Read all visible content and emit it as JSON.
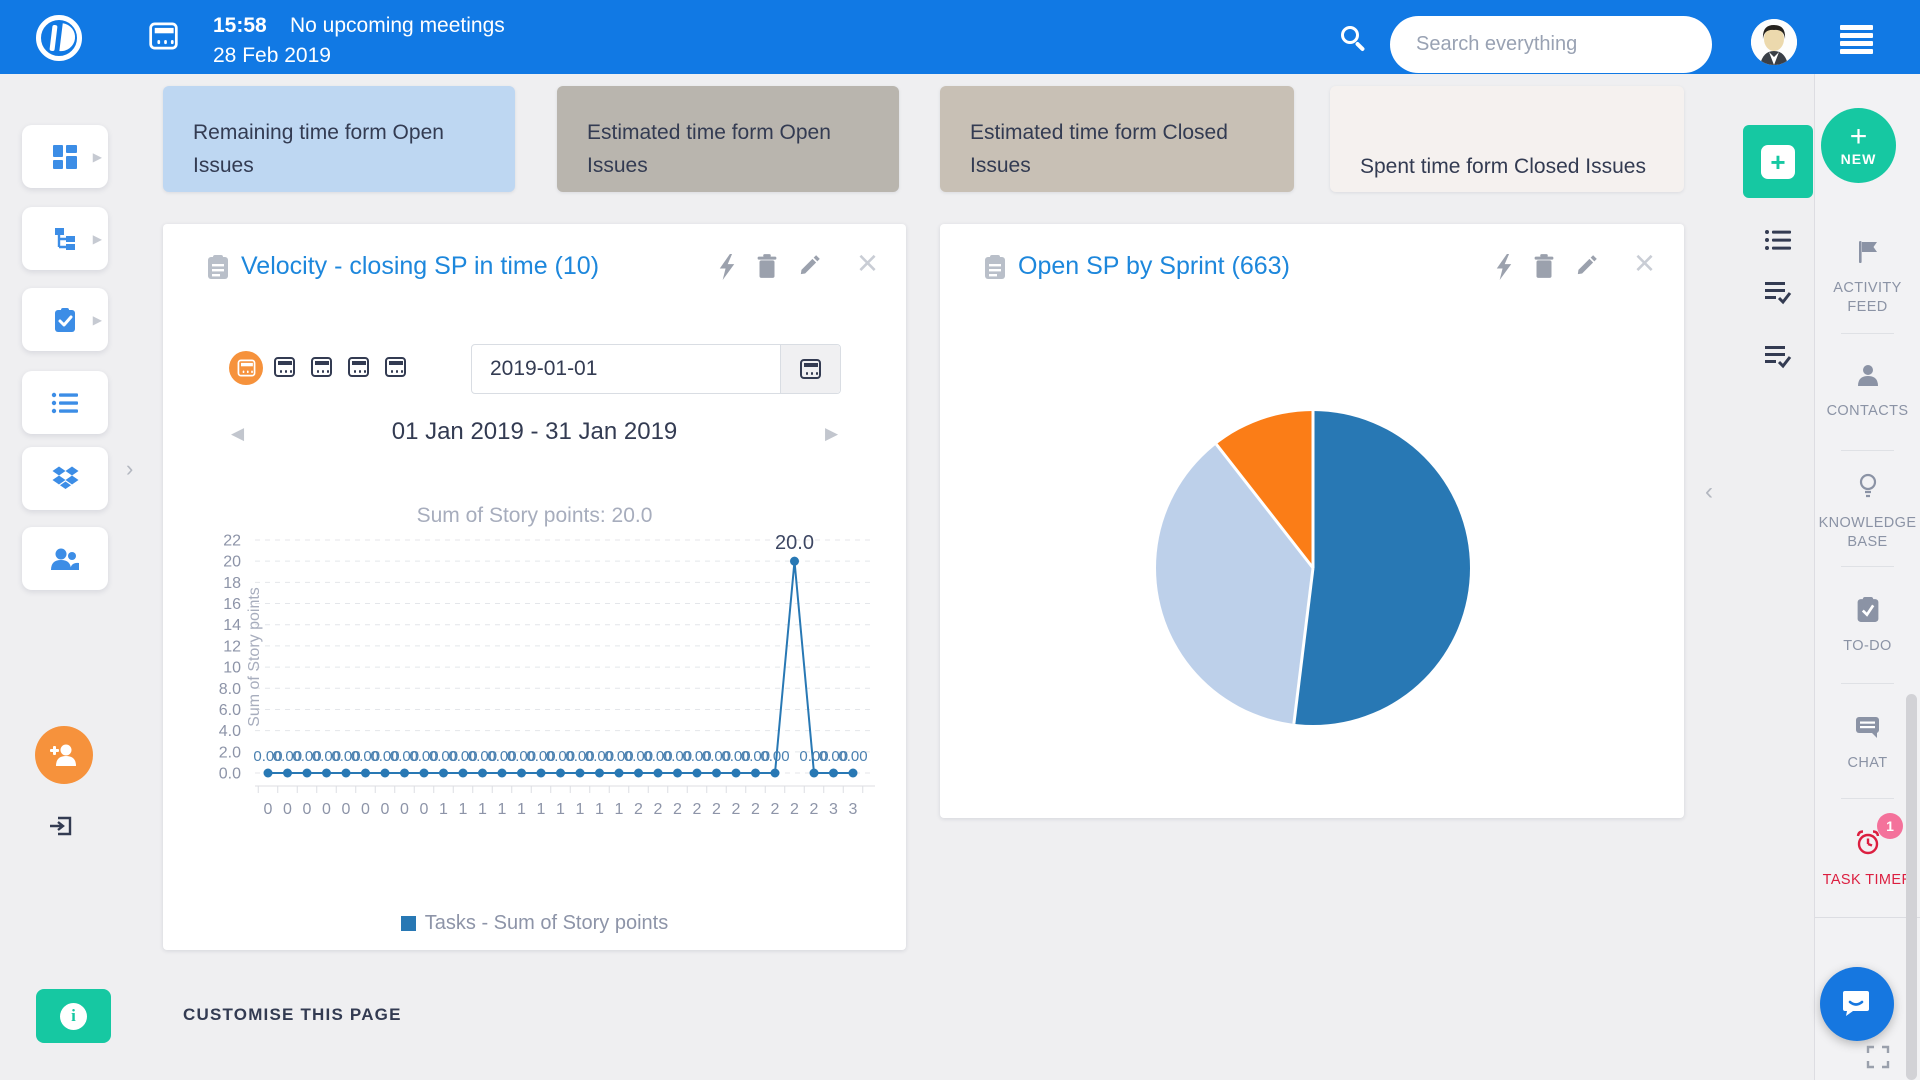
{
  "theme": {
    "topbar_blue": "#1179e4",
    "accent_blue": "#1d87dc",
    "navy": "#333b52",
    "teal": "#16c8a2",
    "orange": "#f6923c",
    "chart_blue": "#2878b4",
    "timer_red": "#dc1f40",
    "badge_pink": "#f4729b"
  },
  "topbar": {
    "time": "15:58",
    "meeting_status": "No upcoming meetings",
    "date": "28 Feb 2019",
    "search_placeholder": "Search everything"
  },
  "summary_cards": [
    {
      "label": "Remaining time form Open Issues",
      "bg": "#bed7f2"
    },
    {
      "label": "Estimated time form Open Issues",
      "bg": "#b9b5ae"
    },
    {
      "label": "Estimated time form Closed Issues",
      "bg": "#c8c0b5"
    },
    {
      "label": "Spent time form Closed Issues",
      "bg": "#f5f1ef"
    }
  ],
  "velocity_widget": {
    "title": "Velocity - closing SP in time (10)",
    "date_input_value": "2019-01-01",
    "range_label": "01 Jan 2019 - 31 Jan 2019",
    "chart_data": {
      "type": "line",
      "title": "Sum of Story points: 20.0",
      "ylabel": "Sum of Story points",
      "yticks": [
        "22",
        "20",
        "18",
        "16",
        "14",
        "12",
        "10",
        "8.0",
        "6.0",
        "4.0",
        "2.0",
        "0.0"
      ],
      "ymax": 22,
      "xlabels": [
        "0",
        "0",
        "0",
        "0",
        "0",
        "0",
        "0",
        "0",
        "0",
        "1",
        "1",
        "1",
        "1",
        "1",
        "1",
        "1",
        "1",
        "1",
        "1",
        "2",
        "2",
        "2",
        "2",
        "2",
        "2",
        "2",
        "2",
        "2",
        "2",
        "3",
        "3"
      ],
      "values": [
        0,
        0,
        0,
        0,
        0,
        0,
        0,
        0,
        0,
        0,
        0,
        0,
        0,
        0,
        0,
        0,
        0,
        0,
        0,
        0,
        0,
        0,
        0,
        0,
        0,
        0,
        0,
        20,
        0,
        0,
        0
      ],
      "zero_point_label": "0.00",
      "peak_point_label": "20.0",
      "line_color": "#2878b4",
      "grid": true,
      "legend": "Tasks - Sum of Story points",
      "legend_position": "bottom"
    }
  },
  "pie_widget": {
    "title": "Open SP by Sprint (663)",
    "chart_data": {
      "type": "pie",
      "slices": [
        {
          "name": "slice-1",
          "color": "#2878b4",
          "degrees": 187
        },
        {
          "name": "slice-2",
          "color": "#bdd0ea",
          "degrees": 135
        },
        {
          "name": "slice-3",
          "color": "#fb7d17",
          "degrees": 38
        }
      ],
      "legend_position": "none"
    }
  },
  "right_sidebar": {
    "new_button": "NEW",
    "items": [
      {
        "label": "ACTIVITY FEED",
        "icon": "flag-icon"
      },
      {
        "label": "CONTACTS",
        "icon": "person-icon"
      },
      {
        "label": "KNOWLEDGE BASE",
        "icon": "lightbulb-icon"
      },
      {
        "label": "TO-DO",
        "icon": "clipboard-check-icon"
      },
      {
        "label": "CHAT",
        "icon": "chat-icon"
      },
      {
        "label": "TASK TIMER",
        "icon": "alarm-clock-icon",
        "badge": "1"
      }
    ]
  },
  "footer": {
    "customise_label": "CUSTOMISE THIS PAGE"
  }
}
